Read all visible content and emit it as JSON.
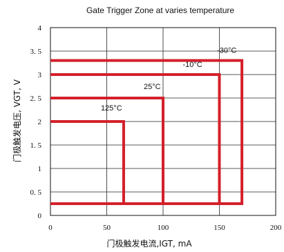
{
  "chart_data": {
    "type": "line",
    "title": "Gate Trigger Zone at varies temperature",
    "xlabel": "门极触发电流,IGT, mA",
    "ylabel": "门极触发电压, VGT, V",
    "xlim": [
      0,
      200
    ],
    "ylim": [
      0,
      4
    ],
    "xticks": [
      0,
      50,
      100,
      150,
      200
    ],
    "yticks": [
      0,
      0.5,
      1,
      1.5,
      2,
      2.5,
      3,
      3.5,
      4
    ],
    "xtick_labels": [
      "0",
      "50",
      "100",
      "150",
      "200"
    ],
    "ytick_labels": [
      "0",
      "0. 5",
      "1",
      "1. 5",
      "2",
      "2. 5",
      "3",
      "3. 5",
      "4"
    ],
    "grid": true,
    "series": [
      {
        "name": "125°C",
        "x": [
          0,
          65,
          65,
          0
        ],
        "y": [
          2.0,
          2.0,
          0.25,
          0.25
        ]
      },
      {
        "name": "25°C",
        "x": [
          0,
          100,
          100,
          0
        ],
        "y": [
          2.5,
          2.5,
          0.25,
          0.25
        ]
      },
      {
        "name": "-10°C",
        "x": [
          0,
          150,
          150,
          0
        ],
        "y": [
          3.0,
          3.0,
          0.25,
          0.25
        ]
      },
      {
        "name": "-30°C",
        "x": [
          0,
          170,
          170,
          0
        ],
        "y": [
          3.3,
          3.3,
          0.25,
          0.25
        ]
      }
    ],
    "colors": {
      "series": "#d3202b",
      "axis": "#111111",
      "grid": "#222222"
    }
  }
}
